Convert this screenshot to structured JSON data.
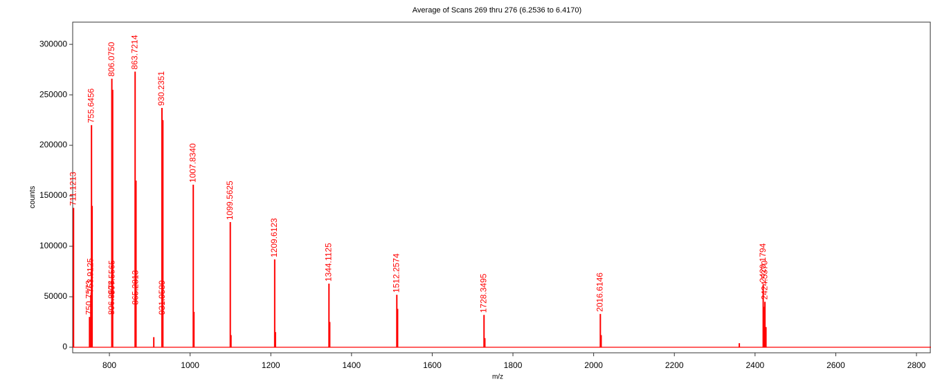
{
  "chart_data": {
    "type": "spectrum",
    "title": "Average of Scans 269 thru 276 (6.2536 to 6.4170)",
    "x_label": "m/z",
    "y_label": "counts",
    "xlim": [
      709,
      2836
    ],
    "ylim": [
      -5500,
      322000
    ],
    "xticks": [
      800,
      1000,
      1200,
      1400,
      1600,
      1800,
      2000,
      2200,
      2400,
      2600,
      2800
    ],
    "yticks": [
      0,
      50000,
      100000,
      150000,
      200000,
      250000,
      300000
    ],
    "series": [
      {
        "color": "#ff0000",
        "x": [
          711.1213,
          750.7573,
          753.9125,
          755.6456,
          806.075,
          806.8576,
          807.5565,
          863.7214,
          865.2813,
          930.2351,
          931.9589,
          1007.834,
          1099.5625,
          1209.6123,
          1344.1125,
          1512.2574,
          1728.3495,
          2016.6146,
          2420.1794,
          2424.537
        ],
        "labels": [
          "711.1213",
          "750.7573",
          "753.9125",
          "755.6456",
          "806.0750",
          "806.8576",
          "807.5565",
          "863.7214",
          "865.2813",
          "930.2351",
          "931.9589",
          "1007.8340",
          "1099.5625",
          "1209.6123",
          "1344.1125",
          "1512.2574",
          "1728.3495",
          "2016.6146",
          "2420.1794",
          "2424.5370"
        ],
        "values": [
          138000,
          30000,
          52000,
          220000,
          266000,
          30000,
          50000,
          273000,
          40000,
          237000,
          30000,
          161000,
          124000,
          87000,
          63000,
          52000,
          32000,
          33000,
          62000,
          45000
        ]
      },
      {
        "color": "#ff0000",
        "x": [
          757.2,
          808.1,
          865.9,
          932.5,
          1009.5,
          1101.3,
          1211.4,
          1346.0,
          1514.2,
          1730.4,
          2018.6,
          2422.3,
          2427.0,
          910.0,
          2361.0
        ],
        "values": [
          140000,
          255000,
          165000,
          225000,
          35000,
          12000,
          15000,
          25000,
          38000,
          9000,
          12000,
          40000,
          20000,
          10000,
          4000
        ]
      }
    ]
  }
}
